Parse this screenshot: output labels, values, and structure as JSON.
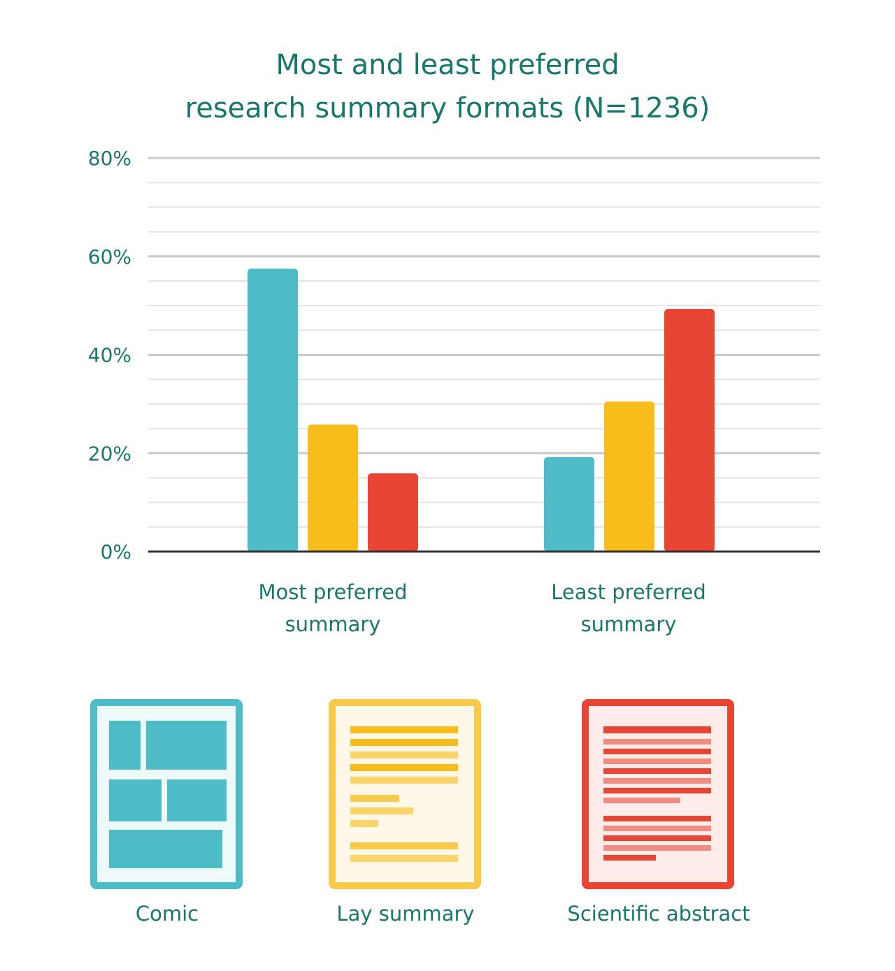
{
  "chart_data": {
    "type": "bar",
    "title": [
      "Most and least preferred",
      "research summary formats (N=1236)"
    ],
    "categories": [
      [
        "Most preferred",
        "summary"
      ],
      [
        "Least preferred",
        "summary"
      ]
    ],
    "series": [
      {
        "name": "Comic",
        "color": "#4dbcc6",
        "values": [
          57.5,
          19.2
        ]
      },
      {
        "name": "Lay summary",
        "color": "#f8bc1b",
        "values": [
          25.8,
          30.5
        ]
      },
      {
        "name": "Scientific abstract",
        "color": "#e84535",
        "values": [
          15.9,
          49.3
        ]
      }
    ],
    "ylim": [
      0,
      80
    ],
    "yticks": [
      0,
      20,
      40,
      60,
      80
    ],
    "ytick_labels": [
      "0%",
      "20%",
      "40%",
      "60%",
      "80%"
    ],
    "grid": true,
    "legend_position": "bottom"
  },
  "legend_icons": [
    "comic-icon",
    "lay-summary-icon",
    "scientific-abstract-icon"
  ]
}
